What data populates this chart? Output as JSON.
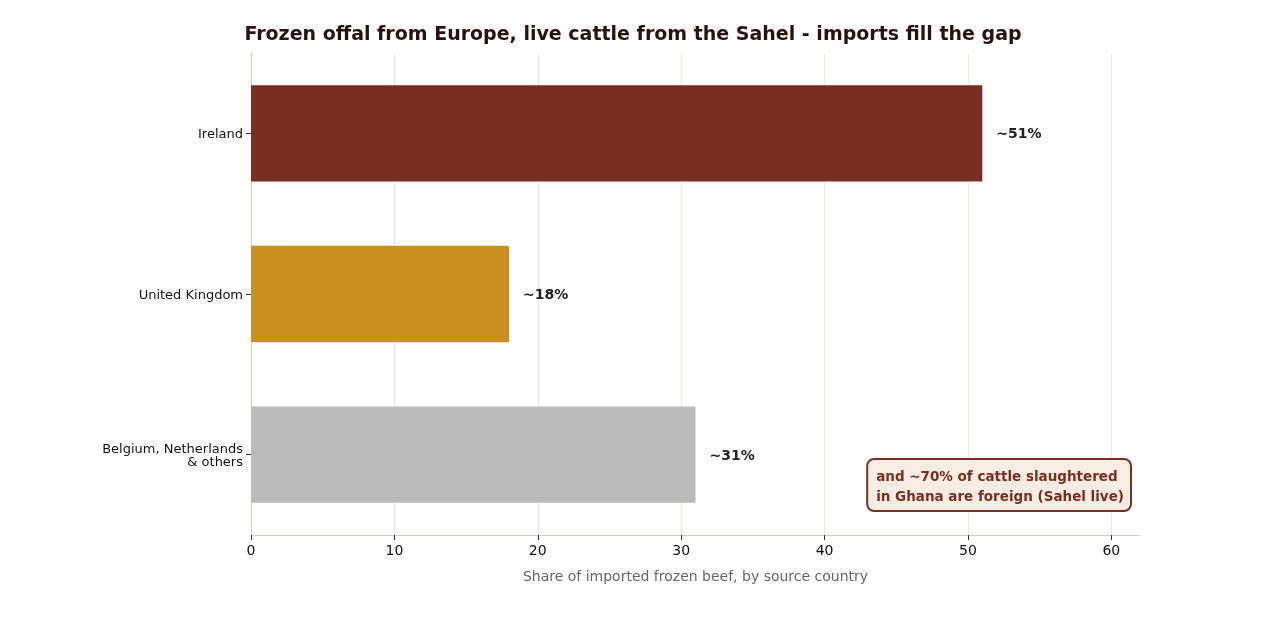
{
  "chart_data": {
    "type": "bar",
    "orientation": "horizontal",
    "title": "Frozen offal from Europe, live cattle from the Sahel - imports fill the gap",
    "xlabel": "Share of imported frozen beef, by source country",
    "categories": [
      "Ireland",
      "United Kingdom",
      "Belgium, Netherlands\n& others"
    ],
    "values": [
      51,
      18,
      31
    ],
    "colors": [
      "#7a2e22",
      "#c89020",
      "#bababa"
    ],
    "value_labels": [
      "~51%",
      "~18%",
      "~31%"
    ],
    "xlim": [
      0,
      62
    ],
    "xticks": [
      0,
      10,
      20,
      30,
      40,
      50,
      60
    ],
    "grid": "x",
    "annotations": [
      "and ~70% of cattle slaughtered\nin Ghana are foreign (Sahel live)"
    ]
  }
}
